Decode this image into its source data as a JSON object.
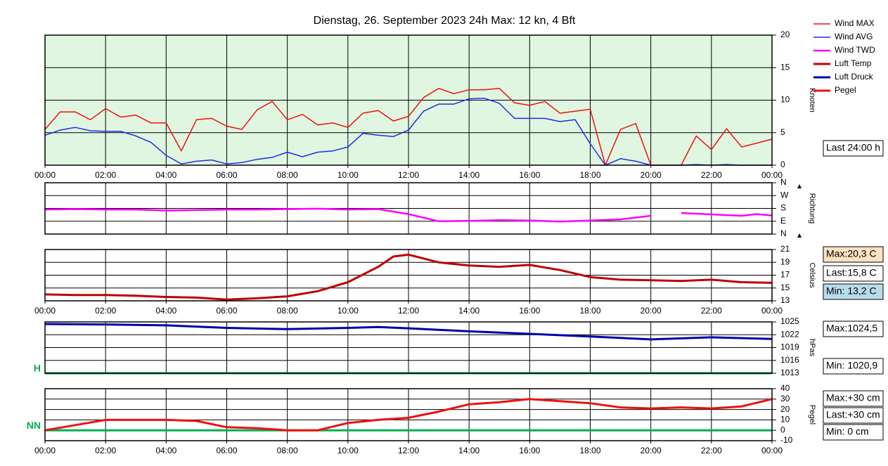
{
  "chart_data": [
    {
      "type": "line",
      "title": "Dienstag, 26. September 2023 24h Max: 12 kn, 4 Bft",
      "ylabel": "Knoten",
      "plot_color": "#e0f6e0",
      "grid": true,
      "ylim": [
        0,
        20
      ],
      "yticks": [
        0,
        5,
        10,
        15,
        20
      ],
      "xlim": [
        0,
        24
      ],
      "xticks": [
        {
          "value": 0,
          "label": "00:00"
        },
        {
          "value": 2,
          "label": "02:00"
        },
        {
          "value": 4,
          "label": "04:00"
        },
        {
          "value": 6,
          "label": "06:00"
        },
        {
          "value": 8,
          "label": "08:00"
        },
        {
          "value": 10,
          "label": "10:00"
        },
        {
          "value": 12,
          "label": "12:00"
        },
        {
          "value": 14,
          "label": "14:00"
        },
        {
          "value": 16,
          "label": "16:00"
        },
        {
          "value": 18,
          "label": "18:00"
        },
        {
          "value": 20,
          "label": "20:00"
        },
        {
          "value": 22,
          "label": "22:00"
        },
        {
          "value": 24,
          "label": "00:00"
        }
      ],
      "x": [
        0,
        0.5,
        1,
        1.5,
        2,
        2.5,
        3,
        3.5,
        4,
        4.5,
        5,
        5.5,
        6,
        6.5,
        7,
        7.5,
        8,
        8.5,
        9,
        9.5,
        10,
        10.5,
        11,
        11.5,
        12,
        12.5,
        13,
        13.5,
        14,
        14.5,
        15,
        15.5,
        16,
        16.5,
        17,
        17.5,
        18,
        18.5,
        19,
        19.5,
        20,
        20.5,
        21,
        21.5,
        22,
        22.5,
        23,
        23.5,
        24
      ],
      "series": [
        {
          "name": "Wind MAX",
          "color": "#ee1111",
          "width": 1.5,
          "values": [
            5.5,
            8.2,
            8.2,
            7.0,
            8.7,
            7.4,
            7.7,
            6.5,
            6.5,
            2.2,
            7.0,
            7.2,
            6.0,
            5.5,
            8.5,
            9.8,
            7.0,
            7.8,
            6.2,
            6.5,
            5.8,
            8.0,
            8.4,
            6.8,
            7.5,
            10.4,
            11.8,
            11.0,
            11.6,
            11.6,
            11.8,
            9.6,
            9.2,
            9.8,
            8.0,
            8.3,
            8.6,
            0,
            5.5,
            6.4,
            0,
            0,
            0,
            4.5,
            2.4,
            5.6,
            2.8,
            3.4,
            4.0
          ]
        },
        {
          "name": "Wind AVG",
          "color": "#1c2ee8",
          "width": 1.5,
          "values": [
            4.6,
            5.4,
            5.8,
            5.3,
            5.2,
            5.2,
            4.5,
            3.5,
            1.5,
            0.2,
            0.6,
            0.8,
            0.2,
            0.4,
            0.9,
            1.2,
            2.0,
            1.3,
            2.0,
            2.2,
            2.8,
            4.9,
            4.6,
            4.4,
            5.4,
            8.3,
            9.4,
            9.4,
            10.2,
            10.3,
            9.5,
            7.2,
            7.2,
            7.2,
            6.7,
            7.0,
            3.3,
            0,
            1.0,
            0.6,
            0,
            0,
            0,
            0.1,
            0,
            0.1,
            0,
            0,
            0
          ]
        }
      ],
      "annotations": [
        {
          "text": "Last 24:00 h",
          "bg": "#ffffff"
        }
      ]
    },
    {
      "type": "line",
      "ylabel": "Richtung",
      "grid": true,
      "ylim": [
        0,
        360
      ],
      "yticks": [
        {
          "value": 0,
          "label": "N"
        },
        {
          "value": 90,
          "label": "E"
        },
        {
          "value": 180,
          "label": "S"
        },
        {
          "value": 270,
          "label": "W"
        },
        {
          "value": 360,
          "label": "N"
        }
      ],
      "xlim": [
        0,
        24
      ],
      "xgrid": [
        0,
        2,
        4,
        6,
        8,
        10,
        12,
        14,
        16,
        18,
        20,
        22,
        24
      ],
      "x": [
        0,
        1,
        2,
        3,
        4,
        5,
        6,
        7,
        8,
        9,
        10,
        11,
        12,
        13,
        14,
        15,
        16,
        17,
        18,
        19,
        20,
        20.5,
        21,
        22,
        23,
        23.5,
        24
      ],
      "series": [
        {
          "name": "Wind TWD",
          "color": "#ff00ff",
          "width": 2.5,
          "values": [
            172,
            175,
            172,
            172,
            165,
            168,
            172,
            172,
            175,
            178,
            172,
            175,
            140,
            90,
            92,
            97,
            95,
            88,
            95,
            103,
            128,
            null,
            148,
            138,
            128,
            140,
            130
          ]
        }
      ],
      "annotations": []
    },
    {
      "type": "line",
      "ylabel": "Celsius",
      "grid": true,
      "ylim": [
        13,
        21
      ],
      "yticks": [
        13,
        15,
        17,
        19,
        21
      ],
      "xlim": [
        0,
        24
      ],
      "xticks": [
        {
          "value": 0,
          "label": "00:00"
        },
        {
          "value": 2,
          "label": "02:00"
        },
        {
          "value": 4,
          "label": "04:00"
        },
        {
          "value": 6,
          "label": "06:00"
        },
        {
          "value": 8,
          "label": "08:00"
        },
        {
          "value": 10,
          "label": "10:00"
        },
        {
          "value": 12,
          "label": "12:00"
        },
        {
          "value": 14,
          "label": "14:00"
        },
        {
          "value": 16,
          "label": "16:00"
        },
        {
          "value": 18,
          "label": "18:00"
        },
        {
          "value": 20,
          "label": "20:00"
        },
        {
          "value": 22,
          "label": "22:00"
        },
        {
          "value": 24,
          "label": "00:00"
        }
      ],
      "x": [
        0,
        1,
        2,
        3,
        4,
        5,
        6,
        7,
        8,
        9,
        10,
        11,
        11.5,
        12,
        13,
        14,
        15,
        16,
        17,
        18,
        19,
        20,
        21,
        22,
        23,
        24
      ],
      "series": [
        {
          "name": "Luft Temp",
          "color": "#c00000",
          "width": 3,
          "values": [
            14.0,
            13.9,
            13.9,
            13.8,
            13.6,
            13.5,
            13.2,
            13.4,
            13.7,
            14.5,
            15.9,
            18.3,
            19.9,
            20.2,
            19.0,
            18.5,
            18.3,
            18.6,
            17.8,
            16.7,
            16.3,
            16.2,
            16.1,
            16.3,
            15.9,
            15.8
          ]
        }
      ],
      "annotations": [
        {
          "text": "Max:20,3 C",
          "bg": "#fde1c2"
        },
        {
          "text": "Last:15,8 C",
          "bg": "#ffffff"
        },
        {
          "text": "Min: 13,2 C",
          "bg": "#b9dcec"
        }
      ]
    },
    {
      "type": "line",
      "ylabel": "hPas",
      "grid": true,
      "ylim": [
        1013,
        1025
      ],
      "yticks": [
        1013,
        1016,
        1019,
        1022,
        1025
      ],
      "xlim": [
        0,
        24
      ],
      "xgrid": [
        0,
        2,
        4,
        6,
        8,
        10,
        12,
        14,
        16,
        18,
        20,
        22,
        24
      ],
      "reference": {
        "value": 1013,
        "label": "H",
        "color": "#00b050"
      },
      "x": [
        0,
        2,
        4,
        6,
        8,
        10,
        11,
        12,
        14,
        16,
        18,
        20,
        22,
        24
      ],
      "series": [
        {
          "name": "Luft Druck",
          "color": "#0000a8",
          "width": 3,
          "values": [
            1024.5,
            1024.4,
            1024.2,
            1023.6,
            1023.3,
            1023.6,
            1023.8,
            1023.5,
            1022.8,
            1022.2,
            1021.6,
            1020.9,
            1021.4,
            1021.0
          ]
        }
      ],
      "annotations": [
        {
          "text": "Max:1024,5",
          "bg": "#ffffff"
        },
        {
          "text": "Min: 1020,9",
          "bg": "#ffffff"
        }
      ]
    },
    {
      "type": "line",
      "ylabel": "Pegel",
      "grid": true,
      "ylim": [
        -10,
        40
      ],
      "yticks": [
        -10,
        0,
        10,
        20,
        30,
        40
      ],
      "xlim": [
        0,
        24
      ],
      "xticks": [
        {
          "value": 0,
          "label": "00:00"
        },
        {
          "value": 2,
          "label": "02:00"
        },
        {
          "value": 4,
          "label": "04:00"
        },
        {
          "value": 6,
          "label": "06:00"
        },
        {
          "value": 8,
          "label": "08:00"
        },
        {
          "value": 10,
          "label": "10:00"
        },
        {
          "value": 12,
          "label": "12:00"
        },
        {
          "value": 14,
          "label": "14:00"
        },
        {
          "value": 16,
          "label": "16:00"
        },
        {
          "value": 18,
          "label": "18:00"
        },
        {
          "value": 20,
          "label": "20:00"
        },
        {
          "value": 22,
          "label": "22:00"
        },
        {
          "value": 24,
          "label": "00:00"
        }
      ],
      "reference": {
        "value": 0,
        "label": "NN",
        "color": "#00b050"
      },
      "x": [
        0,
        1,
        2,
        3,
        4,
        5,
        6,
        7,
        8,
        9,
        10,
        11,
        12,
        13,
        14,
        15,
        16,
        17,
        18,
        19,
        20,
        21,
        22,
        23,
        24
      ],
      "series": [
        {
          "name": "Pegel",
          "color": "#ee1111",
          "width": 3,
          "values": [
            0,
            5,
            10,
            10,
            10,
            9,
            3,
            2,
            0,
            0,
            7,
            10,
            12,
            18,
            25,
            27,
            30,
            28,
            26,
            22,
            21,
            22,
            21,
            23,
            30
          ]
        }
      ],
      "annotations": [
        {
          "text": "Max:+30 cm",
          "bg": "#ffffff"
        },
        {
          "text": "Last:+30 cm",
          "bg": "#ffffff"
        },
        {
          "text": "Min: 0 cm",
          "bg": "#ffffff"
        }
      ]
    }
  ]
}
